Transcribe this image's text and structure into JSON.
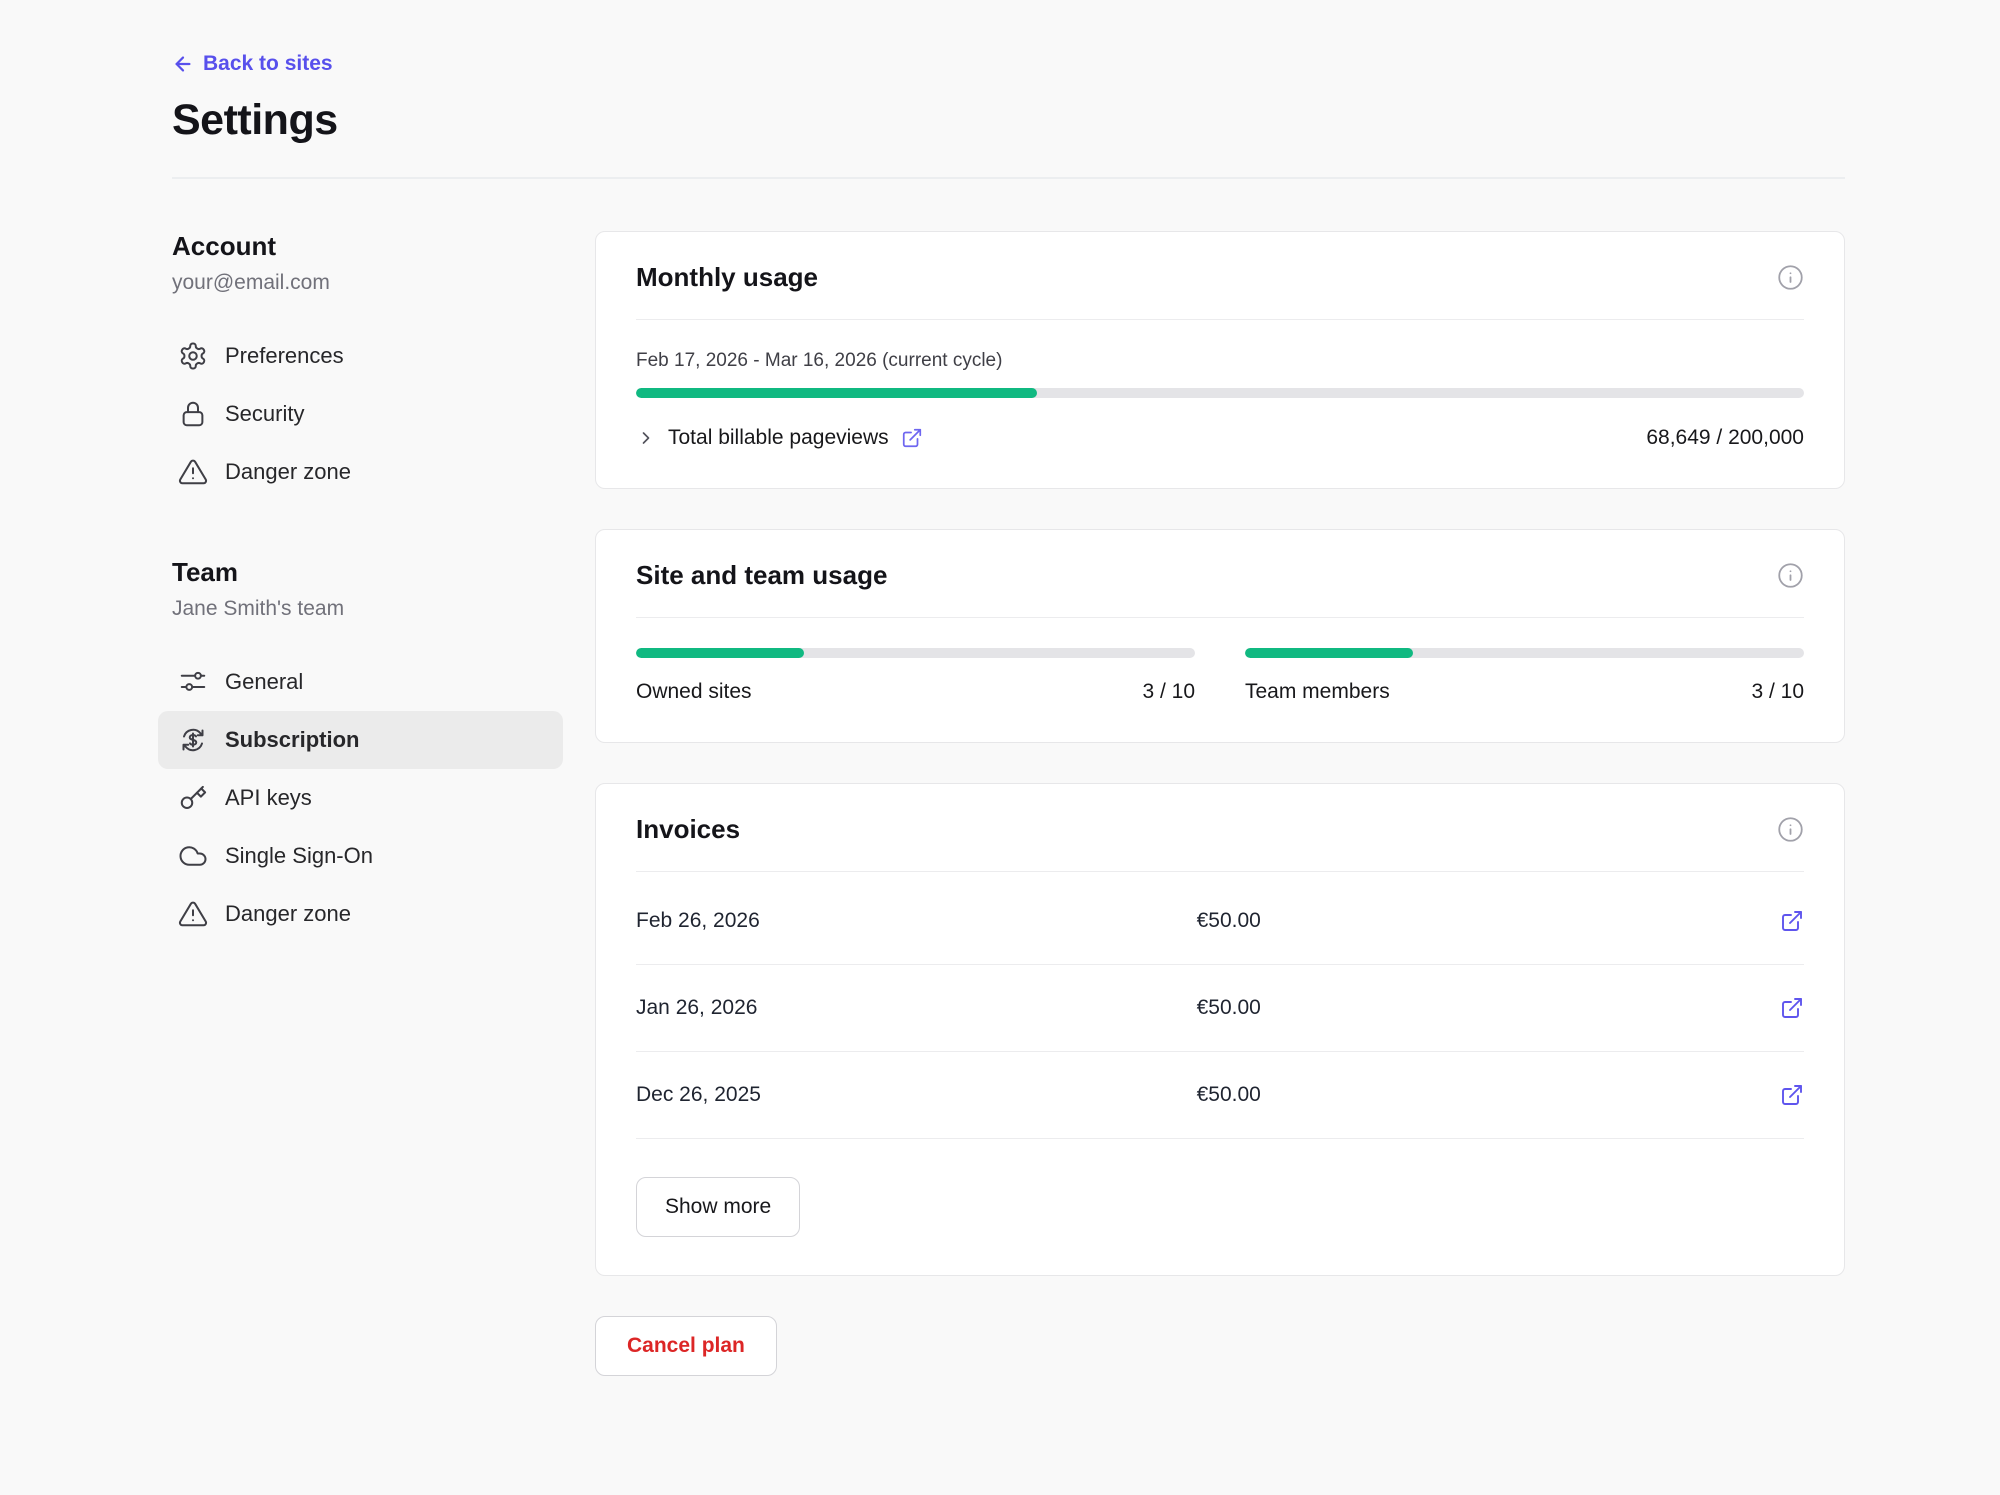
{
  "header": {
    "back_label": "Back to sites",
    "title": "Settings"
  },
  "sidebar": {
    "account": {
      "heading": "Account",
      "subtitle": "your@email.com",
      "items": [
        {
          "label": "Preferences",
          "icon": "gear-icon"
        },
        {
          "label": "Security",
          "icon": "lock-icon"
        },
        {
          "label": "Danger zone",
          "icon": "warning-triangle-icon"
        }
      ]
    },
    "team": {
      "heading": "Team",
      "subtitle": "Jane Smith's team",
      "items": [
        {
          "label": "General",
          "icon": "sliders-icon"
        },
        {
          "label": "Subscription",
          "icon": "dollar-refresh-icon",
          "selected": true
        },
        {
          "label": "API keys",
          "icon": "key-icon"
        },
        {
          "label": "Single Sign-On",
          "icon": "cloud-icon"
        },
        {
          "label": "Danger zone",
          "icon": "warning-triangle-icon"
        }
      ]
    }
  },
  "monthly_usage": {
    "title": "Monthly usage",
    "cycle_label": "Feb 17, 2026 - Mar 16, 2026 (current cycle)",
    "progress_percent": 34.3,
    "metric_label": "Total billable pageviews",
    "value": "68,649 / 200,000",
    "info_icon": "info-circle-icon",
    "metric_link_icon": "external-link-icon"
  },
  "site_team_usage": {
    "title": "Site and team usage",
    "info_icon": "info-circle-icon",
    "meters": [
      {
        "label": "Owned sites",
        "value": "3 / 10",
        "percent": 30
      },
      {
        "label": "Team members",
        "value": "3 / 10",
        "percent": 30
      }
    ]
  },
  "invoices": {
    "title": "Invoices",
    "info_icon": "info-circle-icon",
    "row_link_icon": "external-link-icon",
    "rows": [
      {
        "date": "Feb 26, 2026",
        "amount": "€50.00"
      },
      {
        "date": "Jan 26, 2026",
        "amount": "€50.00"
      },
      {
        "date": "Dec 26, 2025",
        "amount": "€50.00"
      }
    ],
    "show_more_label": "Show more"
  },
  "cancel_plan_label": "Cancel plan",
  "colors": {
    "accent_purple": "#5850ec",
    "progress_green": "#10b981",
    "danger_red": "#dc2626",
    "page_background": "#f9f9f9",
    "card_background": "#ffffff"
  }
}
